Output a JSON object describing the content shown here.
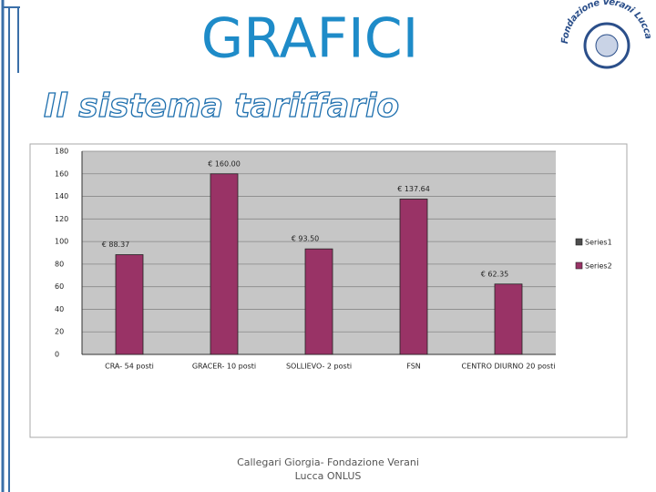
{
  "title": "GRAFICI",
  "subtitle": "Il sistema tariffario",
  "logo": "Fondazione Verani Lucca",
  "footer": "Callegari Giorgia- Fondazione Verani Lucca ONLUS",
  "chart_data": {
    "type": "bar",
    "categories": [
      "CRA- 54 posti",
      "GRACER- 10 posti",
      "SOLLIEVO- 2 posti",
      "FSN",
      "CENTRO DIURNO 20 posti"
    ],
    "series": [
      {
        "name": "Series1",
        "color": "#4d4d4d",
        "values": [
          null,
          null,
          null,
          null,
          null
        ]
      },
      {
        "name": "Series2",
        "color": "#993366",
        "values": [
          88.37,
          160.0,
          93.5,
          137.64,
          62.35
        ],
        "value_labels": [
          "€ 88.37",
          "€ 160.00",
          "€ 93.50",
          "€ 137.64",
          "€ 62.35"
        ]
      }
    ],
    "ylim": [
      0,
      180
    ],
    "yticks": [
      0,
      20,
      40,
      60,
      80,
      100,
      120,
      140,
      160,
      180
    ],
    "grid": true,
    "legend": "right"
  }
}
